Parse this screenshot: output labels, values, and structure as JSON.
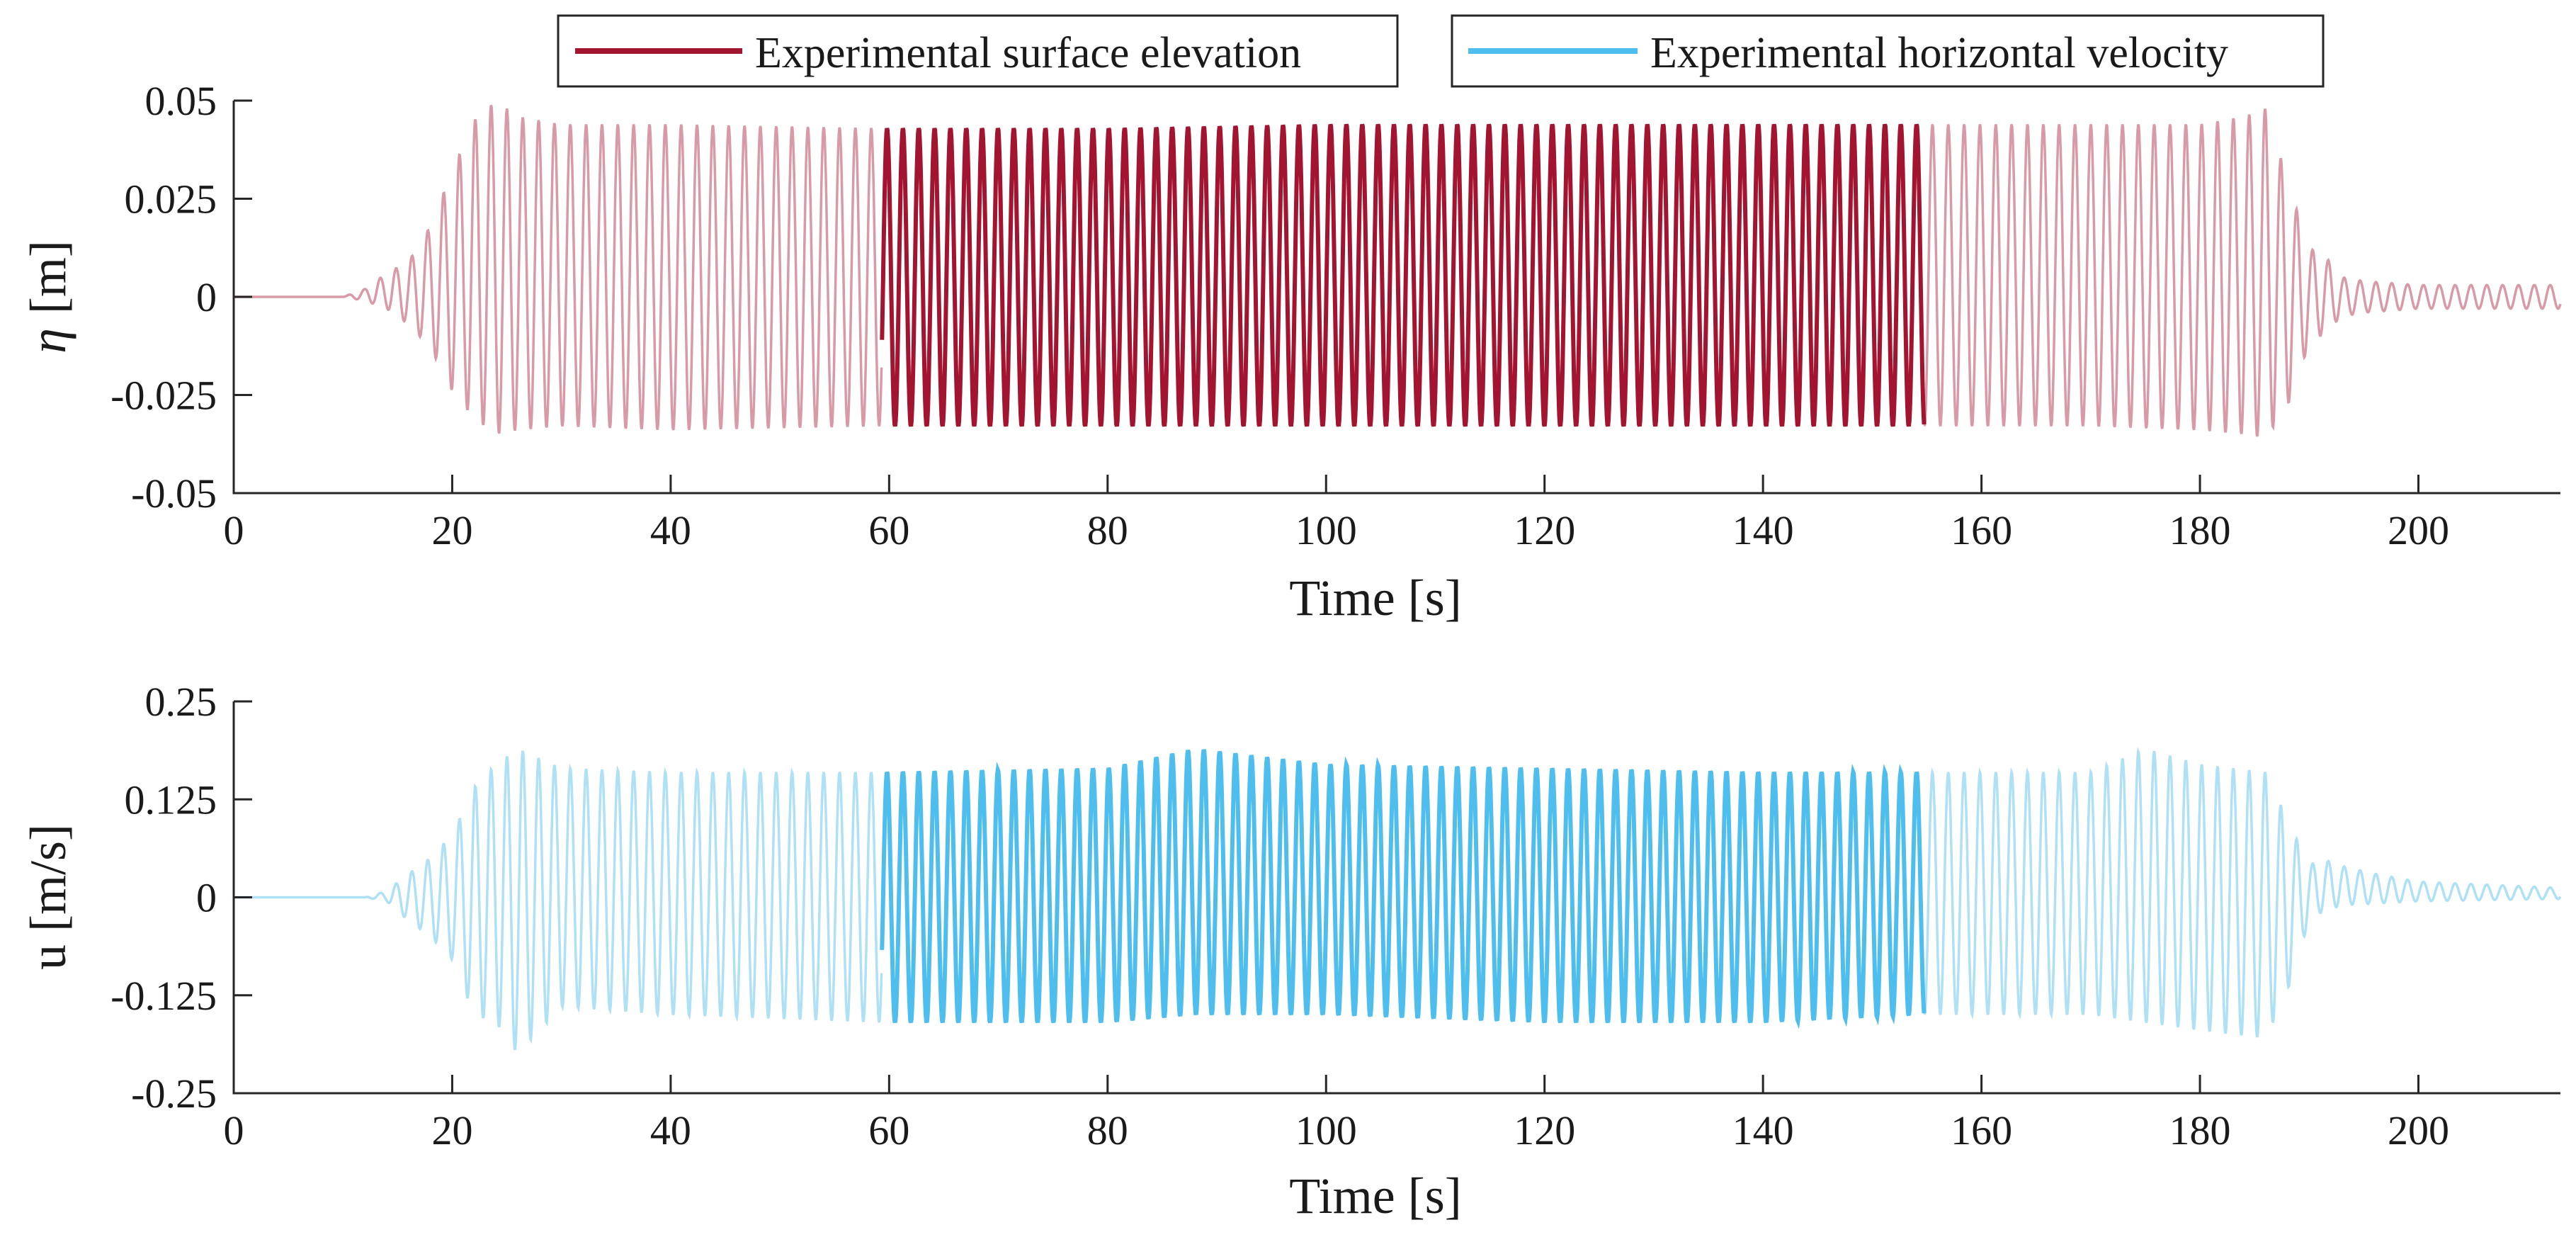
{
  "legend": [
    {
      "label": "Experimental surface elevation",
      "color": "#a2142f"
    },
    {
      "label": "Experimental horizontal velocity",
      "color": "#4dbeee"
    }
  ],
  "chart_data": [
    {
      "type": "line",
      "title": "",
      "xlabel": "Time [s]",
      "ylabel_symbol": "η",
      "ylabel": "[m]",
      "xlim": [
        0,
        213
      ],
      "ylim": [
        -0.05,
        0.05
      ],
      "xticks": [
        0,
        20,
        40,
        60,
        80,
        100,
        120,
        140,
        160,
        180,
        200
      ],
      "yticks": [
        0.05,
        0.025,
        0,
        -0.025,
        -0.05
      ],
      "ytick_labels": [
        "0.05",
        "0.025",
        "0",
        "-0.025",
        "-0.05"
      ],
      "series": [
        {
          "name": "Experimental surface elevation",
          "color": "#a2142f",
          "faded_color": "#d99aa7",
          "highlight_window": [
            59.3,
            154.8
          ],
          "wave_period_s": 1.45,
          "envelope": {
            "t": [
              0,
              10,
              12,
              14,
              16,
              18,
              20,
              22,
              24,
              26,
              30,
              40,
              59.3,
              80,
              100,
              120,
              140,
              154.8,
              170,
              180,
              184,
              186,
              188,
              190,
              191,
              193,
              195,
              200,
              213
            ],
            "crest": [
              0,
              0,
              0.002,
              0.006,
              0.009,
              0.018,
              0.032,
              0.045,
              0.05,
              0.046,
              0.044,
              0.044,
              0.043,
              0.043,
              0.044,
              0.044,
              0.044,
              0.044,
              0.044,
              0.044,
              0.046,
              0.048,
              0.03,
              0.012,
              0.012,
              0.005,
              0.004,
              0.003,
              0.003
            ],
            "trough": [
              0,
              0,
              -0.001,
              -0.003,
              -0.007,
              -0.013,
              -0.024,
              -0.031,
              -0.035,
              -0.034,
              -0.033,
              -0.034,
              -0.033,
              -0.033,
              -0.033,
              -0.033,
              -0.033,
              -0.033,
              -0.033,
              -0.034,
              -0.035,
              -0.036,
              -0.028,
              -0.012,
              -0.01,
              -0.005,
              -0.004,
              -0.003,
              -0.003
            ]
          }
        }
      ]
    },
    {
      "type": "line",
      "title": "",
      "xlabel": "Time [s]",
      "ylabel": "u [m/s]",
      "xlim": [
        0,
        213
      ],
      "ylim": [
        -0.25,
        0.25
      ],
      "xticks": [
        0,
        20,
        40,
        60,
        80,
        100,
        120,
        140,
        160,
        180,
        200
      ],
      "yticks": [
        0.25,
        0.125,
        0,
        -0.125,
        -0.25
      ],
      "ytick_labels": [
        "0.25",
        "0.125",
        "0",
        "-0.125",
        "-0.25"
      ],
      "series": [
        {
          "name": "Experimental horizontal velocity",
          "color": "#4dbeee",
          "faded_color": "#aee0f6",
          "highlight_window": [
            59.3,
            154.8
          ],
          "wave_period_s": 1.45,
          "envelope": {
            "t": [
              0,
              12,
              14,
              16,
              18,
              20,
              22,
              24,
              26,
              30,
              40,
              59.3,
              80,
              88,
              100,
              120,
              140,
              154.8,
              170,
              175,
              180,
              186,
              188,
              190,
              191,
              193,
              196,
              200,
              213
            ],
            "crest": [
              0,
              0,
              0.008,
              0.03,
              0.05,
              0.08,
              0.14,
              0.17,
              0.19,
              0.165,
              0.16,
              0.16,
              0.165,
              0.19,
              0.17,
              0.165,
              0.16,
              0.16,
              0.16,
              0.19,
              0.17,
              0.16,
              0.1,
              0.04,
              0.05,
              0.04,
              0.03,
              0.02,
              0.012
            ],
            "trough": [
              0,
              0,
              -0.005,
              -0.03,
              -0.05,
              -0.08,
              -0.15,
              -0.16,
              -0.2,
              -0.14,
              -0.15,
              -0.16,
              -0.16,
              -0.15,
              -0.15,
              -0.16,
              -0.16,
              -0.15,
              -0.15,
              -0.16,
              -0.17,
              -0.18,
              -0.12,
              -0.03,
              -0.02,
              -0.01,
              -0.008,
              -0.005,
              -0.002
            ]
          }
        }
      ]
    }
  ]
}
